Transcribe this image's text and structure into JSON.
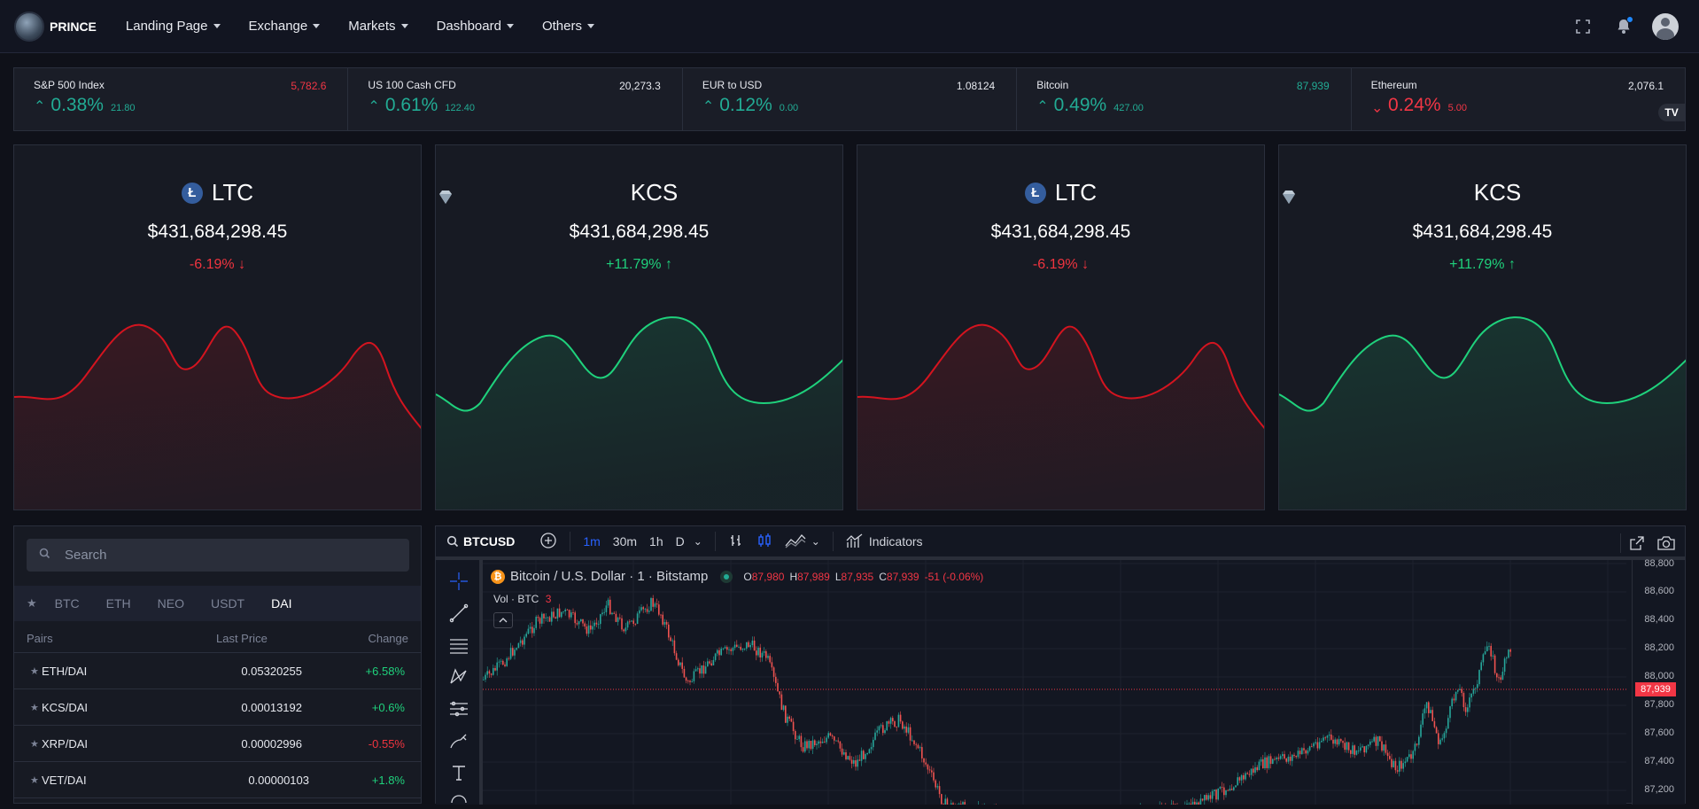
{
  "nav": {
    "brand": "PRINCE",
    "menu": [
      {
        "label": "Landing Page"
      },
      {
        "label": "Exchange"
      },
      {
        "label": "Markets"
      },
      {
        "label": "Dashboard"
      },
      {
        "label": "Others"
      }
    ],
    "icons": [
      "fullscreen-icon",
      "bell-icon",
      "user-avatar"
    ]
  },
  "ticker": [
    {
      "name": "S&P 500 Index",
      "price": "5,782.6",
      "price_color": "#f23645",
      "pct": "0.38%",
      "abs": "21.80",
      "dir": "up"
    },
    {
      "name": "US 100 Cash CFD",
      "price": "20,273.3",
      "price_color": "#e6e8ee",
      "pct": "0.61%",
      "abs": "122.40",
      "dir": "up"
    },
    {
      "name": "EUR to USD",
      "price": "1.08124",
      "price_color": "#e6e8ee",
      "pct": "0.12%",
      "abs": "0.00",
      "dir": "up"
    },
    {
      "name": "Bitcoin",
      "price": "87,939",
      "price_color": "#22ab94",
      "pct": "0.49%",
      "abs": "427.00",
      "dir": "up"
    },
    {
      "name": "Ethereum",
      "price": "2,076.1",
      "price_color": "#e6e8ee",
      "pct": "0.24%",
      "abs": "5.00",
      "dir": "down"
    }
  ],
  "ticker_badge": "TV",
  "cards": [
    {
      "symbol": "LTC",
      "icon": "litecoin-icon",
      "value": "$431,684,298.45",
      "change": "-6.19%",
      "dir": "down"
    },
    {
      "symbol": "KCS",
      "icon": "kucoin-diamond-icon",
      "value": "$431,684,298.45",
      "change": "+11.79%",
      "dir": "up"
    },
    {
      "symbol": "LTC",
      "icon": "litecoin-icon",
      "value": "$431,684,298.45",
      "change": "-6.19%",
      "dir": "down"
    },
    {
      "symbol": "KCS",
      "icon": "kucoin-diamond-icon",
      "value": "$431,684,298.45",
      "change": "+11.79%",
      "dir": "up"
    }
  ],
  "pairs": {
    "search_placeholder": "Search",
    "tabs": [
      "BTC",
      "ETH",
      "NEO",
      "USDT",
      "DAI"
    ],
    "active_tab": "DAI",
    "headers": {
      "pairs": "Pairs",
      "last_price": "Last Price",
      "change": "Change"
    },
    "rows": [
      {
        "pair": "ETH/DAI",
        "price": "0.05320255",
        "change": "+6.58%",
        "dir": "up"
      },
      {
        "pair": "KCS/DAI",
        "price": "0.00013192",
        "change": "+0.6%",
        "dir": "up"
      },
      {
        "pair": "XRP/DAI",
        "price": "0.00002996",
        "change": "-0.55%",
        "dir": "down"
      },
      {
        "pair": "VET/DAI",
        "price": "0.00000103",
        "change": "+1.8%",
        "dir": "up"
      }
    ]
  },
  "tradingview": {
    "symbol": "BTCUSD",
    "intervals": [
      "1m",
      "30m",
      "1h",
      "D"
    ],
    "active_interval": "1m",
    "indicators_label": "Indicators",
    "title": "Bitcoin / U.S. Dollar · 1 · Bitstamp",
    "ohlc": {
      "o": "87,980",
      "h": "87,989",
      "l": "87,935",
      "c": "87,939",
      "chg": "-51 (-0.06%)"
    },
    "vol_label": "Vol · BTC",
    "vol_value": "3",
    "last_price": "87,939",
    "price_axis": [
      "88,800",
      "88,600",
      "88,400",
      "88,200",
      "88,000",
      "87,800",
      "87,600",
      "87,400",
      "87,200"
    ]
  },
  "colors": {
    "up": "#22ab94",
    "down": "#f23645",
    "card_up": "#1fd17c",
    "card_down": "#d4141f"
  }
}
